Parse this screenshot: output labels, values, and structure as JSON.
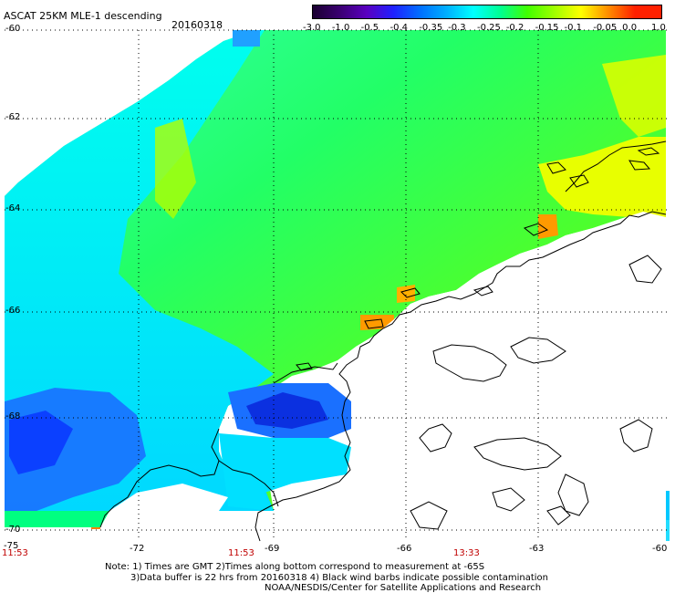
{
  "header": {
    "title": "ASCAT 25KM MLE-1 descending",
    "date": "20160318"
  },
  "colorbar": {
    "labels": [
      "-3.0",
      "-1.0",
      "-0.5",
      "-0.4",
      "-0.35",
      "-0.3",
      "-0.25",
      "-0.2",
      "-0.15",
      "-0.1",
      "-0.05",
      "0.0",
      "1.0"
    ],
    "colors": [
      "#1a0030",
      "#3a0070",
      "#5a00c0",
      "#2020ff",
      "#0070ff",
      "#00b0ff",
      "#00ffff",
      "#00ff90",
      "#40ff00",
      "#a0ff00",
      "#ffff00",
      "#ff9000",
      "#ff2000"
    ]
  },
  "axes": {
    "lat_labels": [
      "-60",
      "-62",
      "-64",
      "-66",
      "-68",
      "-70"
    ],
    "lon_labels": [
      "-75",
      "-72",
      "-69",
      "-66",
      "-63",
      "-60"
    ]
  },
  "times": [
    "11:53",
    "11:53",
    "13:33"
  ],
  "notes": {
    "line1": "Note: 1) Times are GMT 2)Times along bottom correspond to measurement at -65S",
    "line2": "3)Data buffer is 22 hrs from 20160318 4) Black wind barbs indicate possible contamination",
    "line3": "NOAA/NESDIS/Center for Satellite Applications and Research"
  }
}
